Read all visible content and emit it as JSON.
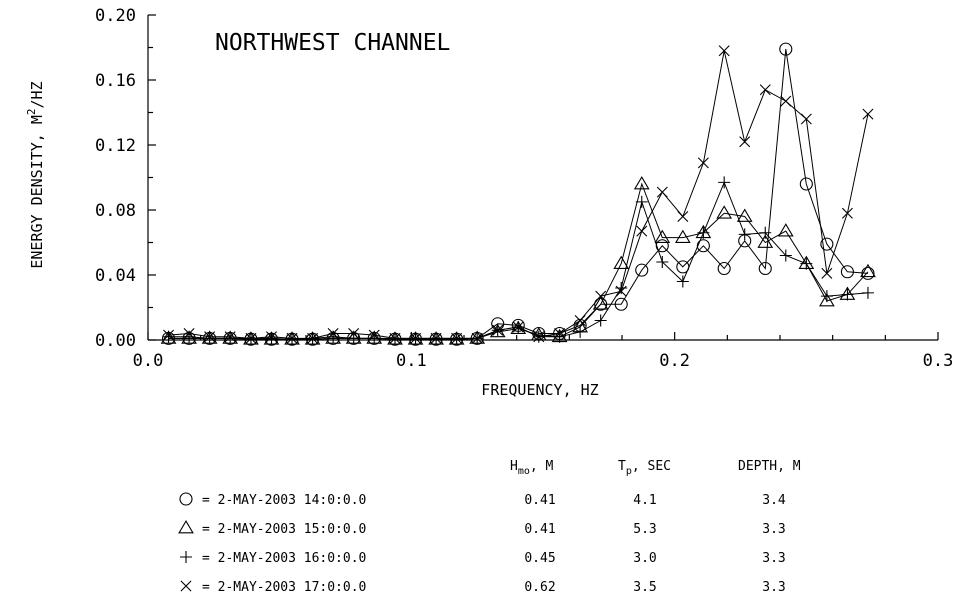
{
  "chart_data": {
    "type": "line",
    "title": "NORTHWEST CHANNEL",
    "xlabel": "FREQUENCY,  HZ",
    "ylabel": "ENERGY DENSITY,  M",
    "ylabel_sup": "2",
    "ylabel_tail": "/HZ",
    "xlim": [
      0.0,
      0.3
    ],
    "ylim": [
      0.0,
      0.2
    ],
    "x_ticks": [
      "0.0",
      "0.1",
      "0.2",
      "0.3"
    ],
    "y_ticks": [
      "0.00",
      "0.04",
      "0.08",
      "0.12",
      "0.16",
      "0.20"
    ],
    "x_tick_values": [
      0.0,
      0.1,
      0.2,
      0.3
    ],
    "y_tick_values": [
      0.0,
      0.04,
      0.08,
      0.12,
      0.16,
      0.2
    ],
    "x": [
      0.0078,
      0.0156,
      0.0234,
      0.0312,
      0.0391,
      0.0469,
      0.0547,
      0.0625,
      0.0703,
      0.0781,
      0.0859,
      0.0938,
      0.1016,
      0.1094,
      0.1172,
      0.125,
      0.1328,
      0.1406,
      0.1484,
      0.1563,
      0.1641,
      0.1719,
      0.1797,
      0.1875,
      0.1953,
      0.2031,
      0.2109,
      0.2188,
      0.2266,
      0.2344,
      0.2422,
      0.25,
      0.2578,
      0.2656,
      0.2734
    ],
    "series": [
      {
        "marker": "circle",
        "values": [
          0.001,
          0.001,
          0.001,
          0.001,
          0.0005,
          0.0005,
          0.0005,
          0.0005,
          0.001,
          0.001,
          0.001,
          0.0005,
          0.0005,
          0.0005,
          0.0005,
          0.001,
          0.01,
          0.009,
          0.004,
          0.004,
          0.009,
          0.022,
          0.022,
          0.043,
          0.058,
          0.045,
          0.058,
          0.044,
          0.061,
          0.044,
          0.179,
          0.096,
          0.059,
          0.042,
          0.041
        ]
      },
      {
        "marker": "triangle",
        "values": [
          0.001,
          0.001,
          0.001,
          0.001,
          0.0005,
          0.0005,
          0.0005,
          0.0005,
          0.001,
          0.001,
          0.001,
          0.0005,
          0.0005,
          0.0005,
          0.0005,
          0.001,
          0.005,
          0.007,
          0.003,
          0.002,
          0.008,
          0.022,
          0.047,
          0.096,
          0.063,
          0.063,
          0.066,
          0.078,
          0.076,
          0.06,
          0.067,
          0.047,
          0.024,
          0.028,
          0.042
        ]
      },
      {
        "marker": "plus",
        "values": [
          0.002,
          0.002,
          0.001,
          0.001,
          0.001,
          0.001,
          0.0005,
          0.001,
          0.002,
          0.001,
          0.001,
          0.001,
          0.001,
          0.001,
          0.001,
          0.001,
          0.006,
          0.008,
          0.002,
          0.002,
          0.005,
          0.012,
          0.032,
          0.085,
          0.048,
          0.036,
          0.066,
          0.097,
          0.065,
          0.066,
          0.052,
          0.047,
          0.027,
          0.028,
          0.029
        ]
      },
      {
        "marker": "cross",
        "values": [
          0.003,
          0.004,
          0.002,
          0.002,
          0.001,
          0.002,
          0.001,
          0.001,
          0.004,
          0.004,
          0.003,
          0.001,
          0.001,
          0.001,
          0.001,
          0.001,
          0.006,
          0.008,
          0.002,
          0.004,
          0.012,
          0.027,
          0.03,
          0.067,
          0.091,
          0.076,
          0.109,
          0.178,
          0.122,
          0.154,
          0.147,
          0.136,
          0.041,
          0.078,
          0.139
        ]
      }
    ]
  },
  "legend": {
    "headers": [
      "H",
      "mo",
      ", M",
      "T",
      "p",
      ", SEC",
      "DEPTH, M"
    ],
    "rows": [
      {
        "marker": "circle",
        "label": "= 2-MAY-2003 14:0:0.0",
        "hmo": "0.41",
        "tp": "4.1",
        "depth": "3.4"
      },
      {
        "marker": "triangle",
        "label": "= 2-MAY-2003 15:0:0.0",
        "hmo": "0.41",
        "tp": "5.3",
        "depth": "3.3"
      },
      {
        "marker": "plus",
        "label": "= 2-MAY-2003 16:0:0.0",
        "hmo": "0.45",
        "tp": "3.0",
        "depth": "3.3"
      },
      {
        "marker": "cross",
        "label": "= 2-MAY-2003 17:0:0.0",
        "hmo": "0.62",
        "tp": "3.5",
        "depth": "3.3"
      }
    ]
  }
}
